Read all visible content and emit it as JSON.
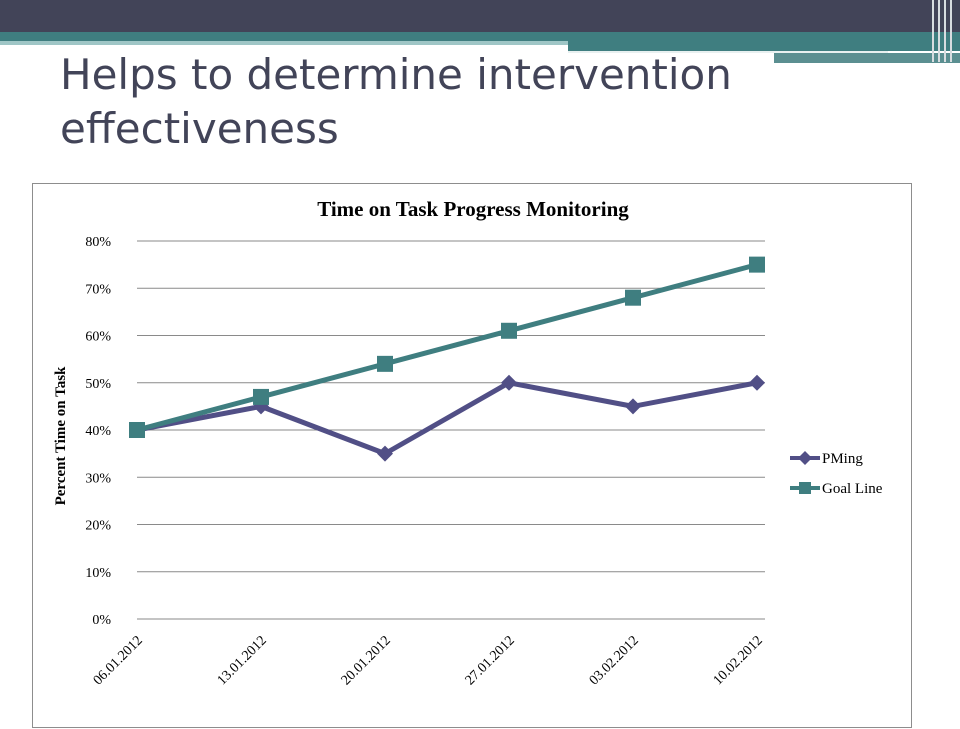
{
  "slide": {
    "title": "Helps to determine intervention effectiveness"
  },
  "colors": {
    "topbar": "#424458",
    "accent": "#3f7e80",
    "pming": "#514f86",
    "goal_line": "#3f7e80"
  },
  "chart_data": {
    "type": "line",
    "title": "Time on Task Progress Monitoring",
    "ylabel": "Percent Time on Task",
    "xlabel": "",
    "categories": [
      "06.01.2012",
      "13.01.2012",
      "20.01.2012",
      "27.01.2012",
      "03.02.2012",
      "10.02.2012"
    ],
    "ylim": [
      0,
      0.8
    ],
    "yticks": [
      0,
      0.1,
      0.2,
      0.3,
      0.4,
      0.5,
      0.6,
      0.7,
      0.8
    ],
    "ytick_labels": [
      "0%",
      "10%",
      "20%",
      "30%",
      "40%",
      "50%",
      "60%",
      "70%",
      "80%"
    ],
    "grid": true,
    "legend_position": "right",
    "series": [
      {
        "name": "PMing",
        "values": [
          0.4,
          0.45,
          0.35,
          0.5,
          0.45,
          0.5
        ],
        "marker": "diamond",
        "color": "#514f86"
      },
      {
        "name": "Goal Line",
        "values": [
          0.4,
          0.47,
          0.54,
          0.61,
          0.68,
          0.75
        ],
        "marker": "square",
        "color": "#3f7e80"
      }
    ]
  }
}
